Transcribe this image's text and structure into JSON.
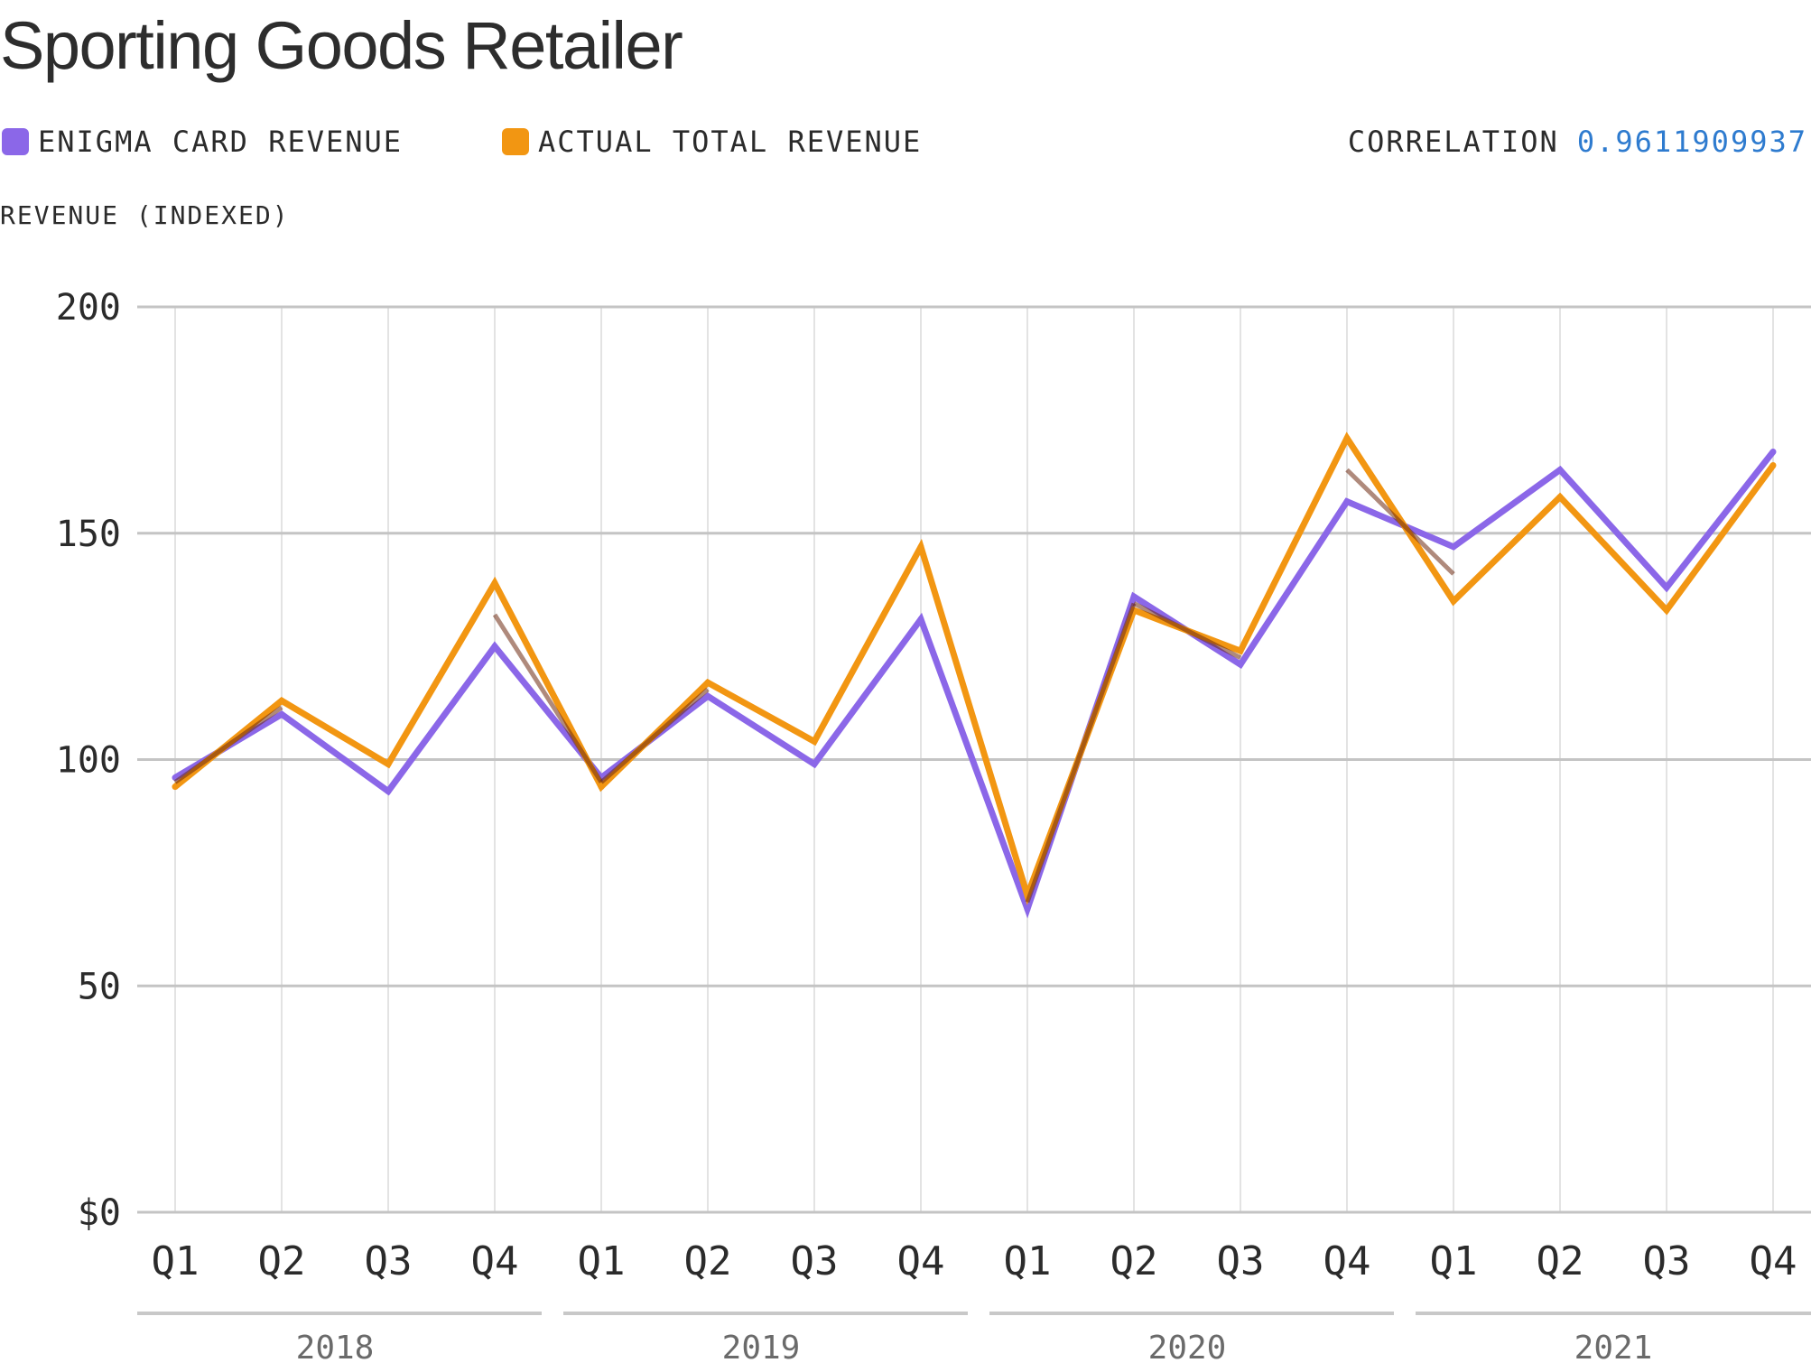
{
  "chart_data": {
    "type": "line",
    "title": "Sporting Goods Retailer",
    "ylabel": "REVENUE (INDEXED)",
    "ylim": [
      0,
      200
    ],
    "yticks": [
      0,
      50,
      100,
      150,
      200
    ],
    "ytick_labels": [
      "$0",
      "50",
      "100",
      "150",
      "200"
    ],
    "grid": true,
    "categories": [
      "Q1",
      "Q2",
      "Q3",
      "Q4",
      "Q1",
      "Q2",
      "Q3",
      "Q4",
      "Q1",
      "Q2",
      "Q3",
      "Q4",
      "Q1",
      "Q2",
      "Q3",
      "Q4"
    ],
    "year_groups": [
      {
        "label": "2018",
        "start": 0,
        "end": 3
      },
      {
        "label": "2019",
        "start": 4,
        "end": 7
      },
      {
        "label": "2020",
        "start": 8,
        "end": 11
      },
      {
        "label": "2021",
        "start": 12,
        "end": 15
      }
    ],
    "series": [
      {
        "name": "ENIGMA CARD REVENUE",
        "color": "#8b67e8",
        "values": [
          96,
          110,
          93,
          125,
          96,
          114,
          99,
          131,
          67,
          136,
          121,
          157,
          147,
          164,
          138,
          168
        ]
      },
      {
        "name": "ACTUAL TOTAL REVENUE",
        "color": "#f29612",
        "values": [
          94,
          113,
          99,
          139,
          94,
          117,
          104,
          147,
          70,
          133,
          124,
          171,
          135,
          158,
          133,
          165
        ]
      }
    ],
    "overlap_color": "#6e2a10",
    "correlation": {
      "label": "CORRELATION",
      "value": "0.9611909937",
      "value_color": "#2e7bcf"
    }
  }
}
